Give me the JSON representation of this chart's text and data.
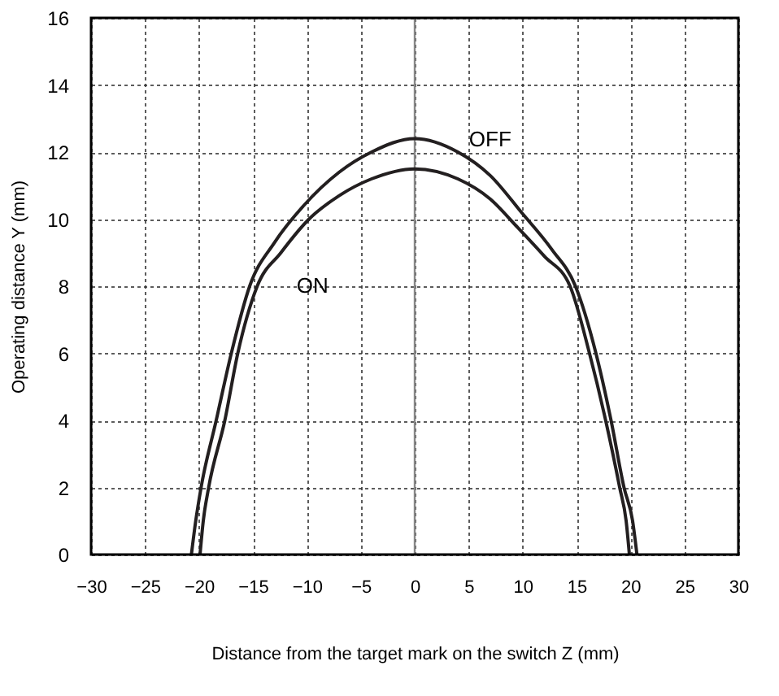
{
  "chart_data": {
    "type": "line",
    "xlabel": "Distance from the target mark on the switch Z (mm)",
    "ylabel": "Operating distance Y (mm)",
    "xlim": [
      -30,
      30
    ],
    "ylim": [
      0,
      16
    ],
    "xticks": [
      {
        "value": -30,
        "label": "−30"
      },
      {
        "value": -25,
        "label": "−25"
      },
      {
        "value": -20,
        "label": "−20"
      },
      {
        "value": -15,
        "label": "−15"
      },
      {
        "value": -10,
        "label": "−10"
      },
      {
        "value": -5,
        "label": "−5"
      },
      0,
      5,
      10,
      15,
      20,
      25,
      30
    ],
    "yticks": [
      0,
      2,
      4,
      6,
      8,
      10,
      12,
      14,
      16
    ],
    "series": [
      {
        "name": "OFF",
        "color": "#231f20",
        "x": [
          -20.7,
          -20.3,
          -19.8,
          -18.4,
          -17.0,
          -15.3,
          -13.0,
          -10.3,
          -7.0,
          -4.0,
          0,
          4.0,
          7.0,
          9.9,
          12.7,
          14.9,
          16.8,
          18.2,
          19.4,
          20.2,
          20.6
        ],
        "values": [
          0,
          1,
          2,
          4,
          6,
          8,
          9.3,
          10.4,
          11.4,
          12.0,
          12.4,
          12.0,
          11.3,
          10.2,
          9.1,
          8,
          6,
          4,
          2,
          1,
          0
        ]
      },
      {
        "name": "ON",
        "color": "#231f20",
        "x": [
          -19.9,
          -19.6,
          -19.1,
          -17.6,
          -16.4,
          -14.6,
          -12.4,
          -9.8,
          -7.0,
          -4.0,
          0,
          4.0,
          7.0,
          9.4,
          12.0,
          14.4,
          16.2,
          17.7,
          19.0,
          19.6,
          19.9
        ],
        "values": [
          0,
          1,
          2,
          4,
          6,
          8,
          9.0,
          10.0,
          10.7,
          11.2,
          11.5,
          11.2,
          10.6,
          9.8,
          8.9,
          8,
          6,
          4,
          2,
          1,
          0
        ]
      }
    ],
    "ref_lines": [
      {
        "axis": "x",
        "value": 0,
        "color": "#888888",
        "line_style": "solid"
      }
    ],
    "grid": true,
    "legend": false,
    "marker": "none",
    "line_style": "solid"
  }
}
